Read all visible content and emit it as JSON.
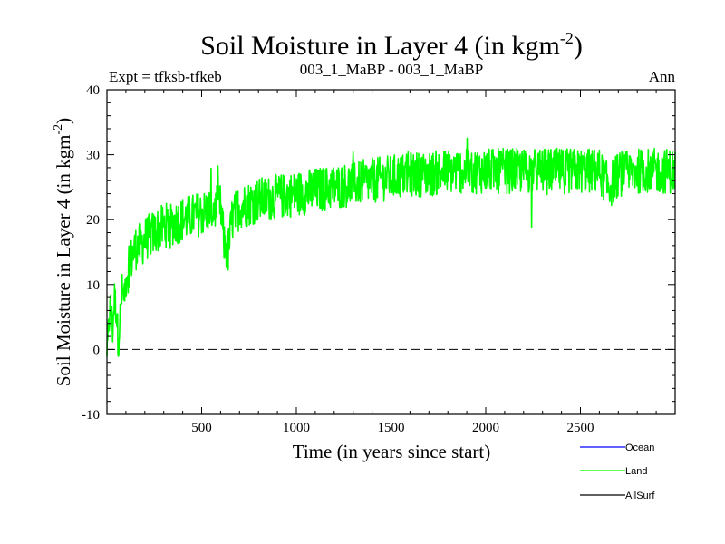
{
  "chart_data": {
    "type": "line",
    "title_main": "Soil Moisture in Layer 4 (in kgm",
    "title_sup": "-2",
    "title_close": ")",
    "subtitle_left": "Expt = tfksb-tfkeb",
    "subtitle_center": "003_1_MaBP - 003_1_MaBP",
    "subtitle_right": "Ann",
    "xlabel": "Time (in years since start)",
    "ylabel_main": "Soil Moisture in Layer 4 (in kgm",
    "ylabel_sup": "-2",
    "ylabel_close": ")",
    "xlim": [
      0,
      3000
    ],
    "ylim": [
      -10,
      40
    ],
    "xticks": [
      500,
      1000,
      1500,
      2000,
      2500
    ],
    "xtick_labels": [
      "500",
      "1000",
      "1500",
      "2000",
      "2500"
    ],
    "yticks": [
      -10,
      0,
      10,
      20,
      30,
      40
    ],
    "ytick_labels": [
      "-10",
      "0",
      "10",
      "20",
      "30",
      "40"
    ],
    "zero_line": 0,
    "legend": [
      {
        "name": "Ocean",
        "color": "#0000ff"
      },
      {
        "name": "Land",
        "color": "#00ff00"
      },
      {
        "name": "AllSurf",
        "color": "#000000"
      }
    ],
    "series": [
      {
        "name": "Land",
        "color": "#00ff00",
        "x": [
          0,
          10,
          20,
          30,
          40,
          50,
          60,
          70,
          80,
          90,
          100,
          120,
          140,
          160,
          180,
          200,
          250,
          300,
          350,
          400,
          450,
          500,
          550,
          600,
          620,
          640,
          660,
          700,
          800,
          900,
          1000,
          1100,
          1200,
          1300,
          1400,
          1500,
          1600,
          1700,
          1800,
          1900,
          2000,
          2100,
          2200,
          2300,
          2400,
          2500,
          2600,
          2650,
          2700,
          2800,
          2900,
          3000
        ],
        "values": [
          -2,
          4,
          7,
          3,
          8,
          6,
          1,
          5,
          9,
          8,
          11,
          13,
          15,
          16,
          16,
          17,
          18,
          19,
          19.5,
          20,
          20.5,
          21,
          21.5,
          22,
          16,
          15,
          20,
          22,
          23,
          23.5,
          24,
          24.5,
          25,
          25.5,
          26,
          26.5,
          27,
          27,
          27.5,
          27.5,
          27.5,
          27.5,
          27.5,
          27.5,
          27.5,
          27.5,
          27.5,
          25,
          27,
          27.5,
          27.5,
          27.5
        ],
        "noise_amplitude": 3.5
      },
      {
        "name": "Ocean",
        "color": "#0000ff",
        "x": [],
        "values": []
      },
      {
        "name": "AllSurf",
        "color": "#000000",
        "x": [],
        "values": []
      }
    ]
  }
}
